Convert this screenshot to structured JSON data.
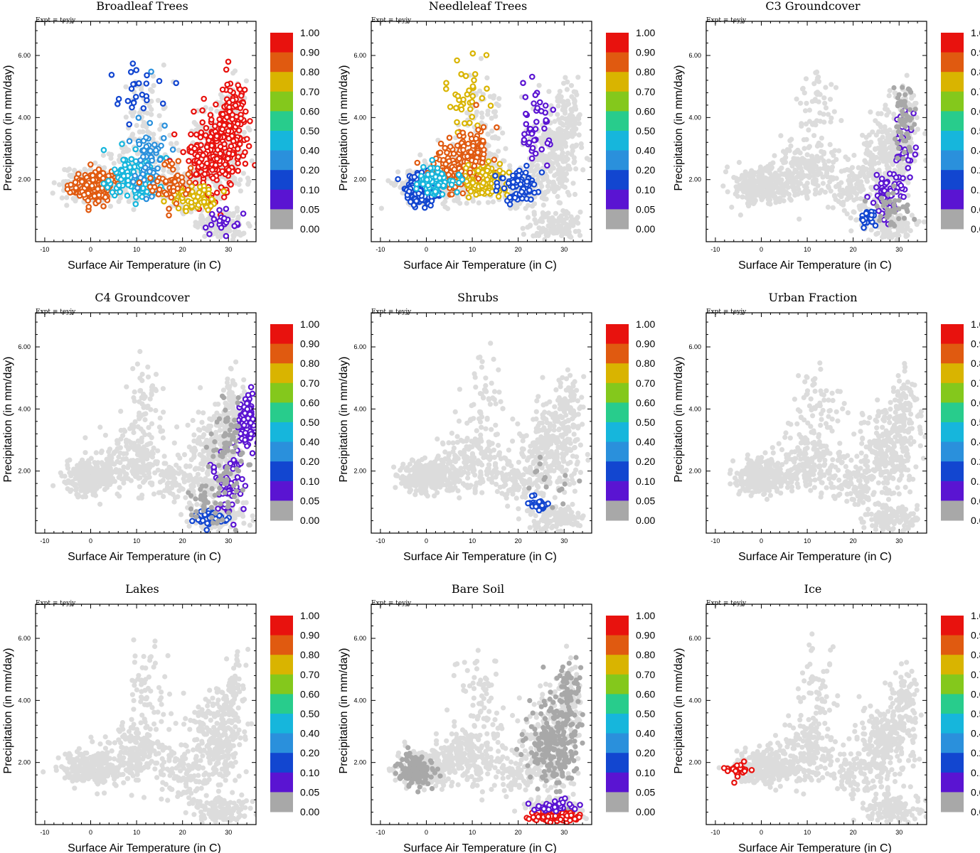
{
  "figure": {
    "panel_order": [
      "Broadleaf Trees",
      "Needleleaf Trees",
      "C3 Groundcover",
      "C4 Groundcover",
      "Shrubs",
      "Urban Fraction",
      "Lakes",
      "Bare Soil",
      "Ice"
    ]
  },
  "chart_data": {
    "type": "scatter",
    "shared": {
      "expt_label": "Expt = teyjy",
      "xlabel": "Surface Air Temperature (in C)",
      "ylabel": "Precipitation (in mm/day)",
      "xlim": [
        -12,
        36
      ],
      "ylim": [
        0,
        7.1
      ],
      "xticks": [
        "-10",
        "0",
        "10",
        "20",
        "30"
      ],
      "yticks": [
        "2.00",
        "4.00",
        "6.00"
      ],
      "colorbar": {
        "labels": [
          "1.00",
          "0.90",
          "0.80",
          "0.70",
          "0.60",
          "0.50",
          "0.40",
          "0.20",
          "0.10",
          "0.05",
          "0.00"
        ],
        "colors": [
          "#e8120e",
          "#e05a10",
          "#d9b400",
          "#84c81c",
          "#28cc8c",
          "#16b6dc",
          "#2a90dc",
          "#1246d0",
          "#5a14d2",
          "#a8a8a8"
        ],
        "background_point_color": "#dcdcdc",
        "zero_point_color": "#a8a8a8"
      }
    },
    "panels": [
      {
        "title": "Broadleaf Trees",
        "clusters": [
          {
            "center": [
              1,
              1.8
            ],
            "spread": [
              4,
              0.4
            ],
            "n": 220,
            "value": 0.8
          },
          {
            "center": [
              10,
              2.0
            ],
            "spread": [
              5,
              0.6
            ],
            "n": 110,
            "value": 0.4
          },
          {
            "center": [
              13,
              2.8
            ],
            "spread": [
              3,
              1.0
            ],
            "n": 60,
            "value": 0.25
          },
          {
            "center": [
              11,
              4.8
            ],
            "spread": [
              4,
              0.9
            ],
            "n": 25,
            "value": 0.15
          },
          {
            "center": [
              27,
              2.8
            ],
            "spread": [
              5,
              1.2
            ],
            "n": 220,
            "value": 0.9
          },
          {
            "center": [
              31,
              4.0
            ],
            "spread": [
              3,
              1.0
            ],
            "n": 90,
            "value": 0.95
          },
          {
            "center": [
              22,
              1.4
            ],
            "spread": [
              4,
              0.4
            ],
            "n": 60,
            "value": 0.7
          },
          {
            "center": [
              29,
              0.6
            ],
            "spread": [
              4,
              0.3
            ],
            "n": 20,
            "value": 0.05
          },
          {
            "center": [
              18,
              1.8
            ],
            "spread": [
              4,
              0.6
            ],
            "n": 50,
            "value": 0.85
          }
        ]
      },
      {
        "title": "Needleleaf Trees",
        "clusters": [
          {
            "center": [
              -1,
              1.7
            ],
            "spread": [
              3,
              0.4
            ],
            "n": 200,
            "value": 0.12
          },
          {
            "center": [
              6,
              2.3
            ],
            "spread": [
              5,
              0.6
            ],
            "n": 140,
            "value": 0.8
          },
          {
            "center": [
              13,
              2.0
            ],
            "spread": [
              4,
              0.5
            ],
            "n": 120,
            "value": 0.75
          },
          {
            "center": [
              20,
              1.8
            ],
            "spread": [
              3,
              0.5
            ],
            "n": 70,
            "value": 0.15
          },
          {
            "center": [
              24,
              3.6
            ],
            "spread": [
              3,
              1.0
            ],
            "n": 45,
            "value": 0.05
          },
          {
            "center": [
              9,
              4.8
            ],
            "spread": [
              4,
              0.9
            ],
            "n": 35,
            "value": 0.75
          },
          {
            "center": [
              10,
              3.0
            ],
            "spread": [
              4,
              0.7
            ],
            "n": 60,
            "value": 0.85
          },
          {
            "center": [
              2,
              2.0
            ],
            "spread": [
              4,
              0.4
            ],
            "n": 80,
            "value": 0.4
          }
        ]
      },
      {
        "title": "C3 Groundcover",
        "clusters": [
          {
            "center": [
              28,
              1.5
            ],
            "spread": [
              3,
              0.6
            ],
            "n": 60,
            "value": 0.05
          },
          {
            "center": [
              31,
              3.0
            ],
            "spread": [
              2,
              1.0
            ],
            "n": 30,
            "value": 0.05
          },
          {
            "center": [
              23,
              0.7
            ],
            "spread": [
              2,
              0.3
            ],
            "n": 20,
            "value": 0.15
          },
          {
            "center": [
              31,
              4.0
            ],
            "spread": [
              2,
              1.0
            ],
            "n": 60,
            "value": 0
          },
          {
            "center": [
              28,
              1.0
            ],
            "spread": [
              4,
              0.6
            ],
            "n": 40,
            "value": 0
          }
        ]
      },
      {
        "title": "C4 Groundcover",
        "clusters": [
          {
            "center": [
              34,
              3.6
            ],
            "spread": [
              1.2,
              0.7
            ],
            "n": 130,
            "value": 0.05
          },
          {
            "center": [
              30,
              1.5
            ],
            "spread": [
              3,
              0.8
            ],
            "n": 60,
            "value": 0.08
          },
          {
            "center": [
              26,
              0.5
            ],
            "spread": [
              3,
              0.2
            ],
            "n": 40,
            "value": 0.15
          },
          {
            "center": [
              30,
              2.8
            ],
            "spread": [
              3,
              1.4
            ],
            "n": 80,
            "value": 0
          },
          {
            "center": [
              26,
              0.9
            ],
            "spread": [
              4,
              0.5
            ],
            "n": 40,
            "value": 0
          }
        ]
      },
      {
        "title": "Shrubs",
        "clusters": [
          {
            "center": [
              24,
              0.9
            ],
            "spread": [
              2,
              0.2
            ],
            "n": 25,
            "value": 0.1
          },
          {
            "center": [
              27,
              1.6
            ],
            "spread": [
              4,
              0.8
            ],
            "n": 15,
            "value": 0
          }
        ]
      },
      {
        "title": "Urban Fraction",
        "clusters": []
      },
      {
        "title": "Lakes",
        "clusters": []
      },
      {
        "title": "Bare Soil",
        "clusters": [
          {
            "center": [
              -2,
              1.7
            ],
            "spread": [
              3,
              0.4
            ],
            "n": 130,
            "value": 0
          },
          {
            "center": [
              28,
              2.6
            ],
            "spread": [
              5,
              1.3
            ],
            "n": 220,
            "value": 0
          },
          {
            "center": [
              31,
              4.3
            ],
            "spread": [
              2,
              0.9
            ],
            "n": 50,
            "value": 0
          },
          {
            "center": [
              28,
              0.25
            ],
            "spread": [
              4,
              0.12
            ],
            "n": 140,
            "value": 0.95
          },
          {
            "center": [
              28,
              0.6
            ],
            "spread": [
              4,
              0.15
            ],
            "n": 40,
            "value": 0.05
          }
        ]
      },
      {
        "title": "Ice",
        "clusters": [
          {
            "center": [
              -5,
              1.75
            ],
            "spread": [
              2.5,
              0.2
            ],
            "n": 25,
            "value": 0.95
          }
        ]
      }
    ],
    "background_cloud": [
      {
        "center": [
          0,
          1.8
        ],
        "spread": [
          5,
          0.45
        ],
        "n": 280
      },
      {
        "center": [
          10,
          2.3
        ],
        "spread": [
          6,
          0.8
        ],
        "n": 200
      },
      {
        "center": [
          12,
          4.2
        ],
        "spread": [
          4,
          1.2
        ],
        "n": 60
      },
      {
        "center": [
          27,
          2.6
        ],
        "spread": [
          5,
          1.3
        ],
        "n": 260
      },
      {
        "center": [
          31,
          4.0
        ],
        "spread": [
          2.5,
          1.0
        ],
        "n": 90
      },
      {
        "center": [
          28,
          0.5
        ],
        "spread": [
          5,
          0.35
        ],
        "n": 120
      },
      {
        "center": [
          20,
          1.6
        ],
        "spread": [
          4,
          0.6
        ],
        "n": 80
      }
    ]
  }
}
